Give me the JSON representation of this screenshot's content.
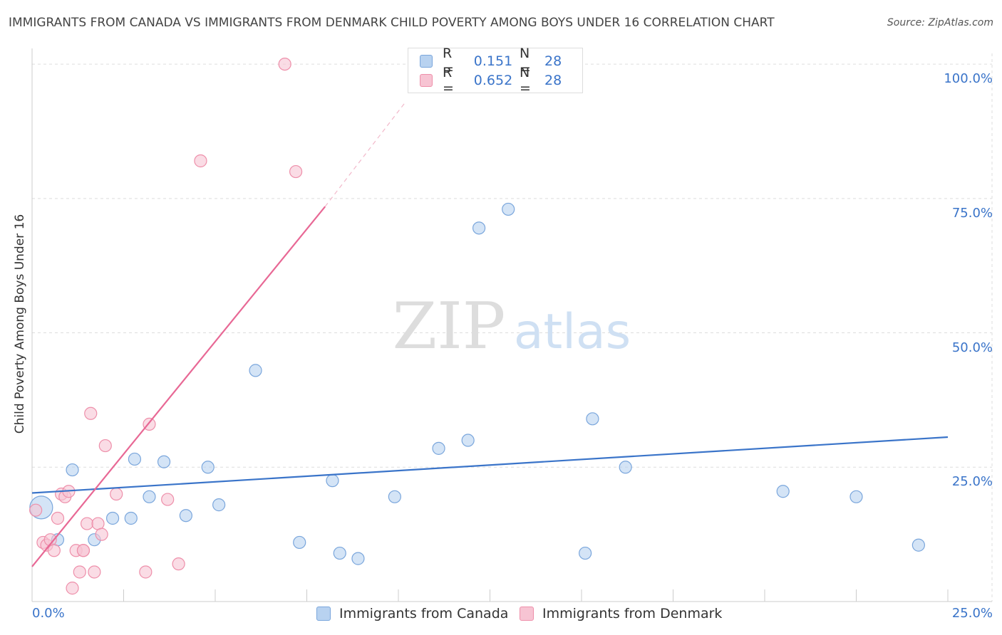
{
  "header": {
    "title": "IMMIGRANTS FROM CANADA VS IMMIGRANTS FROM DENMARK CHILD POVERTY AMONG BOYS UNDER 16 CORRELATION CHART",
    "source": "Source: ZipAtlas.com"
  },
  "watermark": {
    "zip": "ZIP",
    "atlas": "atlas"
  },
  "legend": {
    "canada": {
      "r_label": "R =",
      "r_value": "0.151",
      "n_label": "N =",
      "n_value": "28"
    },
    "denmark": {
      "r_label": "R =",
      "r_value": "0.652",
      "n_label": "N =",
      "n_value": "28"
    }
  },
  "colors": {
    "canada_fill": "#b8d2f0",
    "canada_stroke": "#7aa6dc",
    "canada_line": "#3a74c9",
    "denmark_fill": "#f7c4d3",
    "denmark_stroke": "#ee8faa",
    "denmark_line": "#e86895",
    "tick_text": "#3a74c9",
    "grid": "#dddddd"
  },
  "chart_data": {
    "type": "scatter",
    "title": "IMMIGRANTS FROM CANADA VS IMMIGRANTS FROM DENMARK CHILD POVERTY AMONG BOYS UNDER 16 CORRELATION CHART",
    "xlabel": "",
    "ylabel": "Child Poverty Among Boys Under 16",
    "xlim": [
      0,
      25
    ],
    "ylim": [
      0,
      102
    ],
    "x_tick_labels": [
      "0.0%",
      "25.0%"
    ],
    "y_tick_labels": [
      "25.0%",
      "50.0%",
      "75.0%",
      "100.0%"
    ],
    "y_ticks": [
      25,
      50,
      75,
      100
    ],
    "series": [
      {
        "name": "Immigrants from Canada",
        "color": "#3a74c9",
        "x": [
          0.25,
          0.7,
          1.7,
          2.2,
          2.7,
          3.2,
          3.6,
          4.2,
          4.8,
          5.1,
          6.1,
          7.3,
          8.4,
          8.9,
          9.9,
          11.1,
          11.9,
          13.0,
          15.3,
          15.1,
          12.2,
          8.2,
          16.2,
          20.5,
          22.5,
          24.2,
          1.1,
          2.8
        ],
        "y": [
          17.5,
          11.5,
          11.5,
          15.5,
          15.5,
          19.5,
          26.0,
          16.0,
          25.0,
          18.0,
          43.0,
          11.0,
          9.0,
          8.0,
          19.5,
          28.5,
          30.0,
          73.0,
          34.0,
          9.0,
          69.5,
          22.5,
          25.0,
          20.5,
          19.5,
          10.5,
          24.5,
          26.5
        ],
        "trendline": {
          "x": [
            0,
            25
          ],
          "y": [
            20.2,
            30.6
          ]
        }
      },
      {
        "name": "Immigrants from Denmark",
        "color": "#e86895",
        "x": [
          0.1,
          0.3,
          0.4,
          0.5,
          0.6,
          0.7,
          0.8,
          0.9,
          1.0,
          1.1,
          1.2,
          1.3,
          1.4,
          1.5,
          1.6,
          1.7,
          1.8,
          1.9,
          2.0,
          2.3,
          3.1,
          3.2,
          3.7,
          4.0,
          4.6,
          6.9,
          7.2,
          1.4
        ],
        "y": [
          17.0,
          11.0,
          10.5,
          11.5,
          9.5,
          15.5,
          20.0,
          19.5,
          20.5,
          2.5,
          9.5,
          5.5,
          9.5,
          14.5,
          35.0,
          5.5,
          14.5,
          12.5,
          29.0,
          20.0,
          5.5,
          33.0,
          19.0,
          7.0,
          82.0,
          100.0,
          80.0,
          9.5
        ],
        "trendline": {
          "x": [
            0,
            8.0
          ],
          "y": [
            6.5,
            73.5
          ],
          "dashed_extension": {
            "x": [
              8.0,
              10.2
            ],
            "y": [
              73.5,
              93.0
            ]
          }
        }
      }
    ],
    "legend_labels": [
      "Immigrants from Canada",
      "Immigrants from Denmark"
    ],
    "legend_position": "bottom"
  }
}
